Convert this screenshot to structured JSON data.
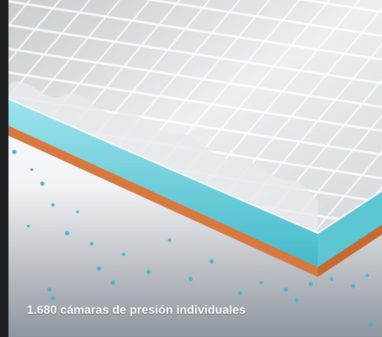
{
  "caption": "1.680 cámaras de presión individuales"
}
